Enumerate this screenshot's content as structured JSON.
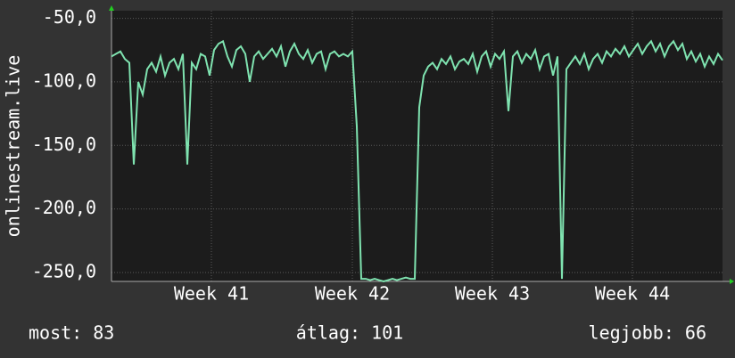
{
  "chart_data": {
    "type": "line",
    "y_label": "onlinestream.live",
    "color": "#7fe3b0",
    "values": [
      -80,
      -78,
      -76,
      -82,
      -85,
      -165,
      -100,
      -110,
      -90,
      -85,
      -92,
      -80,
      -95,
      -85,
      -82,
      -90,
      -78,
      -165,
      -85,
      -90,
      -78,
      -80,
      -95,
      -75,
      -70,
      -68,
      -80,
      -88,
      -75,
      -72,
      -78,
      -100,
      -80,
      -76,
      -82,
      -78,
      -74,
      -80,
      -72,
      -88,
      -76,
      -70,
      -78,
      -82,
      -75,
      -85,
      -78,
      -76,
      -90,
      -78,
      -76,
      -80,
      -78,
      -80,
      -76,
      -135,
      -255,
      -255,
      -256,
      -255,
      -256,
      -257,
      -256,
      -255,
      -256,
      -255,
      -254,
      -255,
      -255,
      -120,
      -95,
      -88,
      -85,
      -90,
      -82,
      -86,
      -80,
      -90,
      -84,
      -82,
      -86,
      -78,
      -92,
      -80,
      -76,
      -88,
      -78,
      -82,
      -76,
      -123,
      -80,
      -76,
      -85,
      -78,
      -82,
      -75,
      -90,
      -80,
      -78,
      -95,
      -80,
      -255,
      -90,
      -85,
      -80,
      -86,
      -78,
      -90,
      -82,
      -78,
      -85,
      -76,
      -80,
      -74,
      -78,
      -72,
      -80,
      -75,
      -70,
      -78,
      -72,
      -68,
      -76,
      -70,
      -80,
      -72,
      -68,
      -75,
      -70,
      -82,
      -76,
      -84,
      -78,
      -88,
      -80,
      -86,
      -78,
      -83
    ],
    "xlim": [
      0,
      137
    ],
    "xticks": [
      {
        "value": 22.4,
        "label": "Week 41"
      },
      {
        "value": 54,
        "label": "Week 42"
      },
      {
        "value": 85.4,
        "label": "Week 43"
      },
      {
        "value": 116.8,
        "label": "Week 44"
      }
    ],
    "ylim": [
      -257,
      -44
    ],
    "yticks": [
      {
        "value": -50,
        "label": "-50,0"
      },
      {
        "value": -100,
        "label": "-100,0"
      },
      {
        "value": -150,
        "label": "-150,0"
      },
      {
        "value": -200,
        "label": "-200,0"
      },
      {
        "value": -250,
        "label": "-250,0"
      }
    ],
    "grid": true,
    "footer": {
      "current": "most: 83",
      "average": "átlag: 101",
      "best": "legjobb: 66"
    }
  }
}
